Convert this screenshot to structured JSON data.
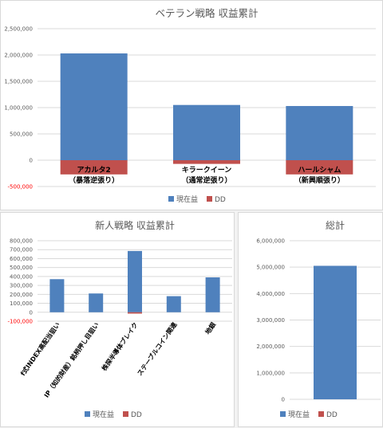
{
  "colors": {
    "current_profit": "#4f81bd",
    "dd": "#c0504d",
    "grid": "#d9d9d9"
  },
  "legend": {
    "current_profit": "現在益",
    "dd": "DD"
  },
  "chart_data": [
    {
      "type": "bar",
      "title": "ベテラン戦略 収益累計",
      "categories": [
        "アカルタ2\n（暴落逆張り）",
        "キラークイーン\n（通常逆張り）",
        "ハールシャム\n（新興順張り）"
      ],
      "series": [
        {
          "name": "現在益",
          "values": [
            2030000,
            1050000,
            1030000
          ]
        },
        {
          "name": "DD",
          "values": [
            -270000,
            -70000,
            -270000
          ]
        }
      ],
      "ylim": [
        -500000,
        2500000
      ],
      "yticks": [
        "2,500,000",
        "2,000,000",
        "1,500,000",
        "1,000,000",
        "500,000",
        "0",
        "-500,000"
      ],
      "ytick_values": [
        2500000,
        2000000,
        1500000,
        1000000,
        500000,
        0,
        -500000
      ],
      "grid": true,
      "legend": "bottom"
    },
    {
      "type": "bar",
      "title": "新人戦略 収益累計",
      "categories": [
        "f式INDEX高配当狙い",
        "IP（知的財産）銘柄押し目狙い",
        "株探半導体ブレイク",
        "ステーブルコイン関連",
        "地銀"
      ],
      "series": [
        {
          "name": "現在益",
          "values": [
            370000,
            210000,
            685000,
            180000,
            390000
          ]
        },
        {
          "name": "DD",
          "values": [
            0,
            0,
            -15000,
            0,
            0
          ]
        }
      ],
      "ylim": [
        -100000,
        800000
      ],
      "yticks": [
        "800,000",
        "700,000",
        "600,000",
        "500,000",
        "400,000",
        "300,000",
        "200,000",
        "100,000",
        "0",
        "-100,000"
      ],
      "ytick_values": [
        800000,
        700000,
        600000,
        500000,
        400000,
        300000,
        200000,
        100000,
        0,
        -100000
      ],
      "grid": true,
      "legend": "bottom"
    },
    {
      "type": "bar",
      "title": "総計",
      "categories": [
        ""
      ],
      "series": [
        {
          "name": "現在益",
          "values": [
            5050000
          ]
        },
        {
          "name": "DD",
          "values": [
            0
          ]
        }
      ],
      "ylim": [
        0,
        6000000
      ],
      "yticks": [
        "6,000,000",
        "5,000,000",
        "4,000,000",
        "3,000,000",
        "2,000,000",
        "1,000,000",
        "0"
      ],
      "ytick_values": [
        6000000,
        5000000,
        4000000,
        3000000,
        2000000,
        1000000,
        0
      ],
      "grid": true,
      "legend": "bottom"
    }
  ]
}
